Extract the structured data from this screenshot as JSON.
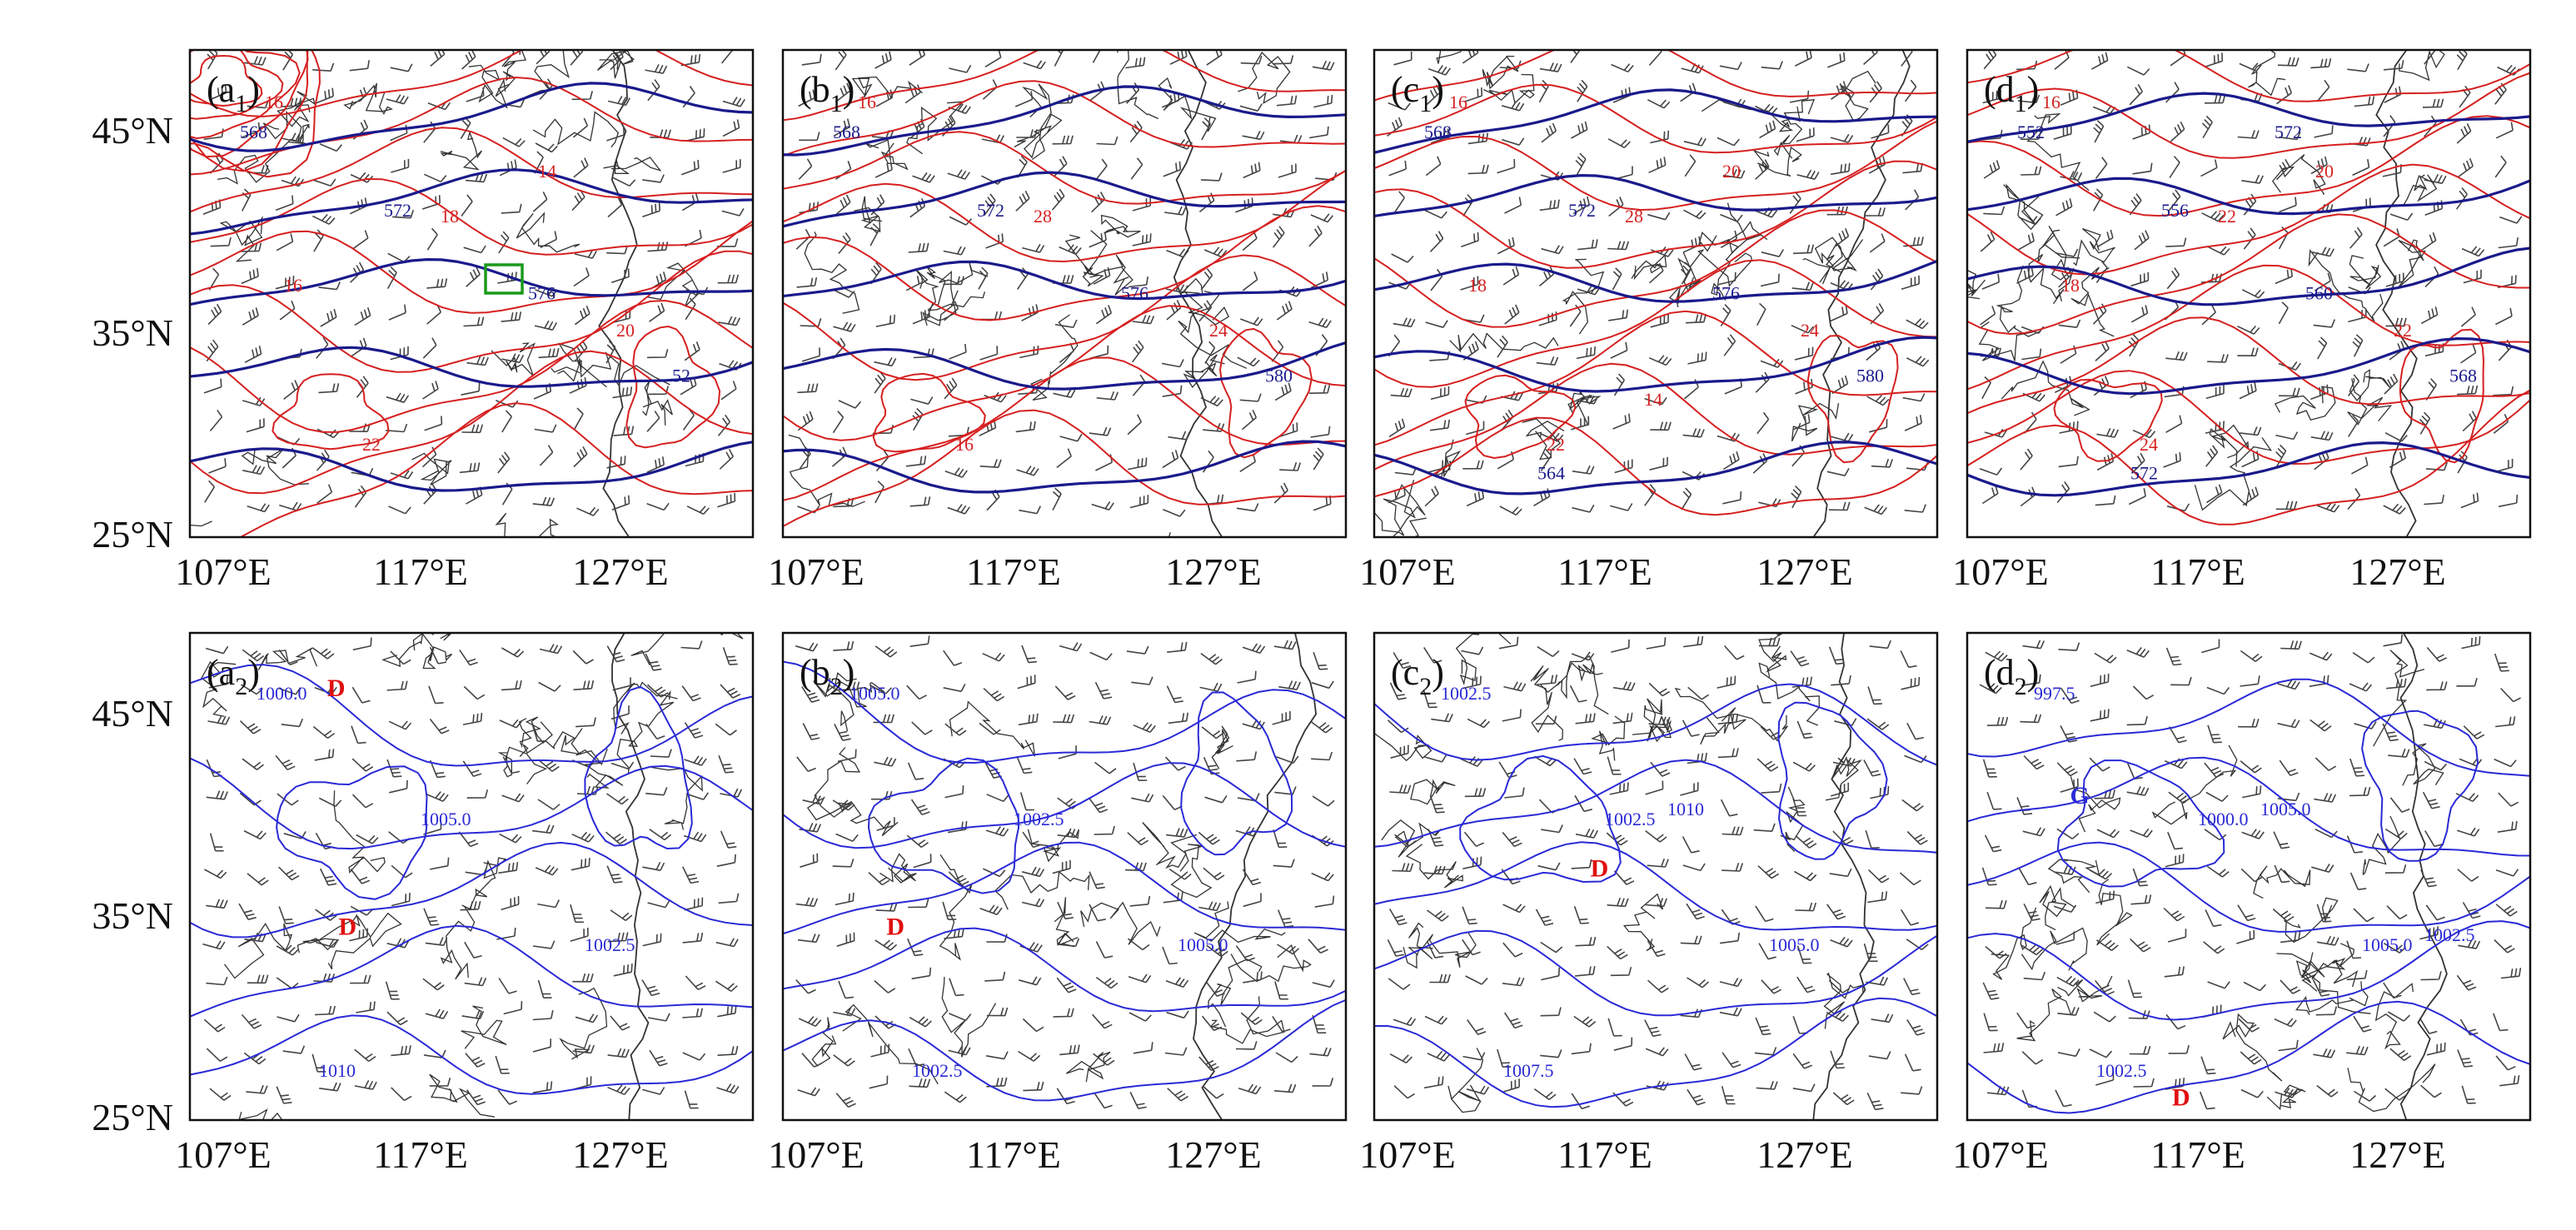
{
  "axes": {
    "lat_labels": [
      "45°N",
      "35°N",
      "25°N"
    ],
    "lon_labels": [
      "107°E",
      "117°E",
      "127°E"
    ]
  },
  "colors": {
    "geopotential": "#1a1a8c",
    "temperature": "#d62020",
    "pressure": "#2a2ad6",
    "borders": "#333333",
    "barbs": "#444444",
    "box": "#1a9a1a",
    "low_center": "#e01010"
  },
  "panels": [
    {
      "id": "a1",
      "letter": "a",
      "sub": "1",
      "row": 0,
      "col": 0,
      "height_labels": [
        "568",
        "572",
        "576",
        "52"
      ],
      "temp_labels": [
        "16",
        "18",
        "20",
        "22",
        "14",
        "16"
      ],
      "centers": [],
      "box": true
    },
    {
      "id": "b1",
      "letter": "b",
      "sub": "1",
      "row": 0,
      "col": 1,
      "height_labels": [
        "568",
        "572",
        "576",
        "580"
      ],
      "temp_labels": [
        "16",
        "28",
        "24",
        "16"
      ],
      "centers": []
    },
    {
      "id": "c1",
      "letter": "c",
      "sub": "1",
      "row": 0,
      "col": 2,
      "height_labels": [
        "568",
        "572",
        "576",
        "580",
        "564"
      ],
      "temp_labels": [
        "16",
        "28",
        "24",
        "22",
        "20",
        "18",
        "14"
      ],
      "centers": []
    },
    {
      "id": "d1",
      "letter": "d",
      "sub": "1",
      "row": 0,
      "col": 3,
      "height_labels": [
        "552",
        "556",
        "560",
        "568",
        "572",
        "572"
      ],
      "temp_labels": [
        "16",
        "22",
        "22",
        "24",
        "20",
        "18"
      ],
      "centers": []
    },
    {
      "id": "a2",
      "letter": "a",
      "sub": "2",
      "row": 1,
      "col": 0,
      "pressure_labels": [
        "1000.0",
        "1005.0",
        "1002.5",
        "1010"
      ],
      "centers": [
        {
          "text": "D"
        },
        {
          "text": "D"
        }
      ]
    },
    {
      "id": "b2",
      "letter": "b",
      "sub": "2",
      "row": 1,
      "col": 1,
      "pressure_labels": [
        "1005.0",
        "1002.5",
        "1005.0",
        "1002.5"
      ],
      "centers": [
        {
          "text": "D"
        }
      ]
    },
    {
      "id": "c2",
      "letter": "c",
      "sub": "2",
      "row": 1,
      "col": 2,
      "pressure_labels": [
        "1002.5",
        "1002.5",
        "1005.0",
        "1007.5",
        "1010"
      ],
      "centers": [
        {
          "text": "D"
        }
      ]
    },
    {
      "id": "d2",
      "letter": "d",
      "sub": "2",
      "row": 1,
      "col": 3,
      "pressure_labels": [
        "997.5",
        "1000.0",
        "1005.0",
        "1002.5",
        "1005.0",
        "1002.5"
      ],
      "centers": [
        {
          "text": "G"
        },
        {
          "text": "D"
        }
      ]
    }
  ]
}
